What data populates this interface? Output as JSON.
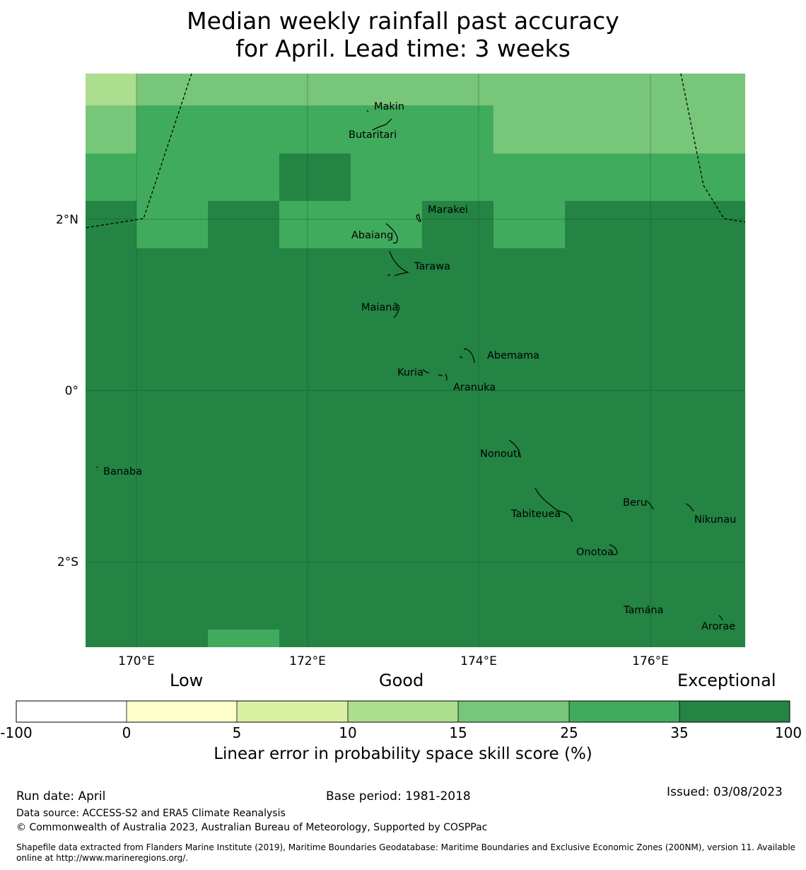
{
  "title": {
    "line1": "Median weekly rainfall past accuracy",
    "line2": "for April. Lead time: 3 weeks"
  },
  "map": {
    "lat_ticks": [
      "2°N",
      "0°",
      "2°S"
    ],
    "lon_ticks": [
      "170°E",
      "172°E",
      "174°E",
      "176°E"
    ],
    "islands": [
      {
        "name": "Makin"
      },
      {
        "name": "Butaritari"
      },
      {
        "name": "Marakei"
      },
      {
        "name": "Abaiang"
      },
      {
        "name": "Tarawa"
      },
      {
        "name": "Maiana"
      },
      {
        "name": "Abemama"
      },
      {
        "name": "Kuria"
      },
      {
        "name": "Aranuka"
      },
      {
        "name": "Banaba"
      },
      {
        "name": "Nonouti"
      },
      {
        "name": "Beru"
      },
      {
        "name": "Tabiteuea"
      },
      {
        "name": "Nikunau"
      },
      {
        "name": "Onotoa"
      },
      {
        "name": "Tamana"
      },
      {
        "name": "Arorae"
      }
    ]
  },
  "colorbar": {
    "categories": [
      "Low",
      "Good",
      "Exceptional"
    ],
    "ticks": [
      "-100",
      "0",
      "5",
      "10",
      "15",
      "25",
      "35",
      "100"
    ],
    "colors": [
      "#ffffff",
      "#ffffcc",
      "#d9f0a3",
      "#addd8e",
      "#78c679",
      "#41ab5d",
      "#238443"
    ],
    "label": "Linear error in probability space skill score (%)"
  },
  "footer": {
    "run_date": "Run date: April",
    "base_period": "Base period: 1981-2018",
    "issued": "Issued: 03/08/2023",
    "data_source": "Data source: ACCESS-S2 and ERA5 Climate Reanalysis",
    "copyright": "© Commonwealth of Australia 2023, Australian Bureau of Meteorology, Supported by COSPPac",
    "shapefile": "Shapefile data extracted from Flanders Marine Institute (2019), Maritime Boundaries Geodatabase: Maritime Boundaries and Exclusive Economic Zones (200NM), version 11. Available online at http://www.marineregions.org/."
  }
}
